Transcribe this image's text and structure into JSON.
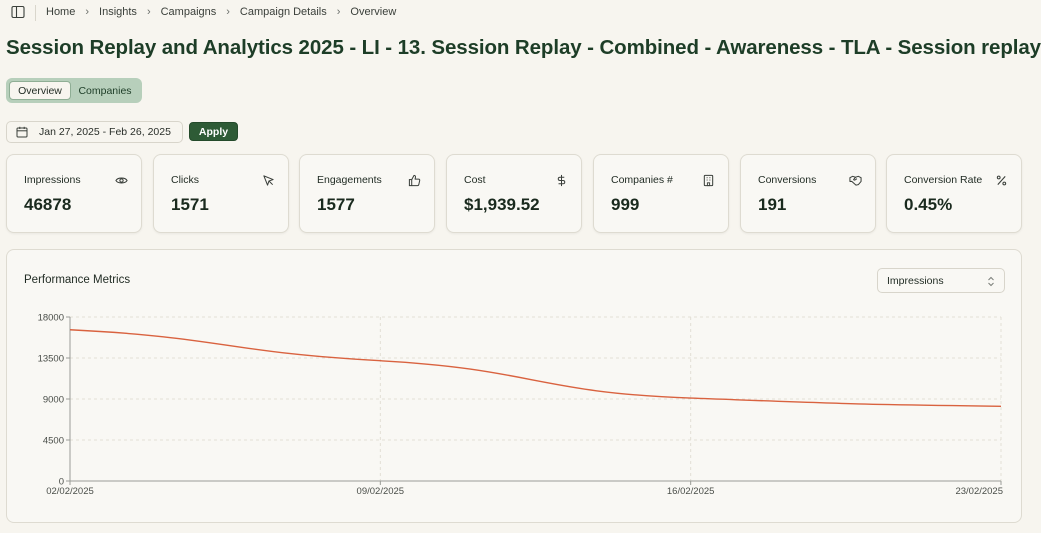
{
  "breadcrumb": {
    "items": [
      "Home",
      "Insights",
      "Campaigns",
      "Campaign Details",
      "Overview"
    ],
    "separator": ">"
  },
  "page": {
    "title": "Session Replay and Analytics 2025 - LI - 13. Session Replay - Combined - Awareness - TLA - Session replay"
  },
  "tabs": [
    {
      "label": "Overview",
      "active": true
    },
    {
      "label": "Companies",
      "active": false
    }
  ],
  "date_range": {
    "value": "Jan 27, 2025 - Feb 26, 2025",
    "apply_label": "Apply"
  },
  "metrics": [
    {
      "label": "Impressions",
      "value": "46878",
      "icon": "eye-icon"
    },
    {
      "label": "Clicks",
      "value": "1571",
      "icon": "cursor-icon"
    },
    {
      "label": "Engagements",
      "value": "1577",
      "icon": "thumbs-up-icon"
    },
    {
      "label": "Cost",
      "value": "$1,939.52",
      "icon": "dollar-icon"
    },
    {
      "label": "Companies #",
      "value": "999",
      "icon": "building-icon"
    },
    {
      "label": "Conversions",
      "value": "191",
      "icon": "handshake-icon"
    },
    {
      "label": "Conversion Rate",
      "value": "0.45%",
      "icon": "percent-icon"
    }
  ],
  "chart_panel": {
    "title": "Performance Metrics",
    "selected_metric": "Impressions"
  },
  "colors": {
    "accent": "#2e5b36",
    "title": "#1d3d27",
    "line": "#d9623f",
    "tab_bg": "#b7cfbb"
  },
  "chart_data": {
    "type": "line",
    "x": [
      "02/02/2025",
      "09/02/2025",
      "16/02/2025",
      "23/02/2025"
    ],
    "yticks": [
      "18000",
      "13500",
      "9000",
      "4500",
      "0"
    ],
    "ylim": [
      0,
      18000
    ],
    "series": [
      {
        "values": [
          16600,
          13200,
          9100,
          8200
        ]
      }
    ],
    "grid": true
  }
}
